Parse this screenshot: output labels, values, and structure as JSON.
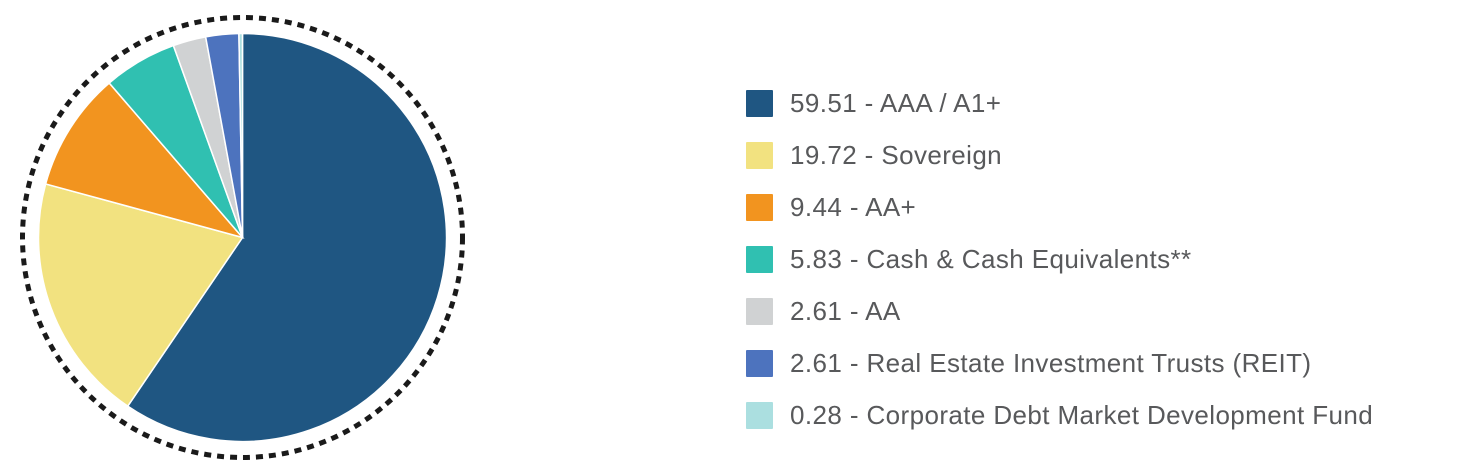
{
  "chart_data": {
    "type": "pie",
    "start_angle": "top",
    "direction": "clockwise",
    "legend_position": "right",
    "background_color": "#ffffff",
    "outline_ring": {
      "style": "dashed",
      "color": "#1A1A1A"
    },
    "series": [
      {
        "label": "AAA / A1+",
        "value": 59.51,
        "color": "#1F5682"
      },
      {
        "label": "Sovereign",
        "value": 19.72,
        "color": "#F2E280"
      },
      {
        "label": "AA+",
        "value": 9.44,
        "color": "#F2941F"
      },
      {
        "label": "Cash & Cash Equivalents**",
        "value": 5.83,
        "color": "#30C0B1"
      },
      {
        "label": "AA",
        "value": 2.61,
        "color": "#D0D2D3"
      },
      {
        "label": "Real Estate Investment Trusts (REIT)",
        "value": 2.61,
        "color": "#4D73BE"
      },
      {
        "label": "Corporate Debt Market Development Fund",
        "value": 0.28,
        "color": "#ABDFE0"
      }
    ]
  },
  "legend": {
    "separator": " - ",
    "text_color": "#58595B",
    "items": [
      {
        "text": "59.51 - AAA / A1+"
      },
      {
        "text": "19.72 - Sovereign"
      },
      {
        "text": "9.44 - AA+"
      },
      {
        "text": "5.83 - Cash & Cash Equivalents**"
      },
      {
        "text": "2.61 - AA"
      },
      {
        "text": "2.61 - Real Estate Investment Trusts (REIT)"
      },
      {
        "text": "0.28 - Corporate Debt Market Development Fund"
      }
    ]
  }
}
